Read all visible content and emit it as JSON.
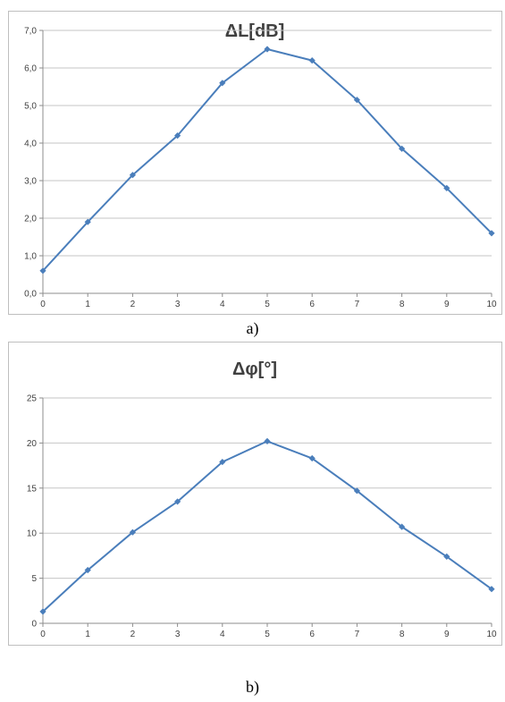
{
  "figure": {
    "caption_a": "a)",
    "caption_b": "b)"
  },
  "chart_data": [
    {
      "type": "line",
      "title": "ΔL[dB]",
      "x": [
        0,
        1,
        2,
        3,
        4,
        5,
        6,
        7,
        8,
        9,
        10
      ],
      "series": [
        {
          "values": [
            0.6,
            1.9,
            3.15,
            4.2,
            5.6,
            6.5,
            6.2,
            5.15,
            3.85,
            2.8,
            1.6
          ],
          "color": "#4a7ebb"
        }
      ],
      "xlabel": "",
      "ylabel": "",
      "xlim": [
        0,
        10
      ],
      "ylim": [
        0,
        7
      ],
      "xticks": [
        "0",
        "1",
        "2",
        "3",
        "4",
        "5",
        "6",
        "7",
        "8",
        "9",
        "10"
      ],
      "yticks": [
        "0,0",
        "1,0",
        "2,0",
        "3,0",
        "4,0",
        "5,0",
        "6,0",
        "7,0"
      ],
      "grid": true,
      "legend": "none"
    },
    {
      "type": "line",
      "title": "Δφ[°]",
      "x": [
        0,
        1,
        2,
        3,
        4,
        5,
        6,
        7,
        8,
        9,
        10
      ],
      "series": [
        {
          "values": [
            1.3,
            5.9,
            10.1,
            13.5,
            17.9,
            20.2,
            18.3,
            14.7,
            10.7,
            7.4,
            3.8
          ],
          "color": "#4a7ebb"
        }
      ],
      "xlabel": "",
      "ylabel": "",
      "xlim": [
        0,
        10
      ],
      "ylim": [
        0,
        25
      ],
      "xticks": [
        "0",
        "1",
        "2",
        "3",
        "4",
        "5",
        "6",
        "7",
        "8",
        "9",
        "10"
      ],
      "yticks": [
        "0",
        "5",
        "10",
        "15",
        "20",
        "25"
      ],
      "grid": true,
      "legend": "none"
    }
  ]
}
